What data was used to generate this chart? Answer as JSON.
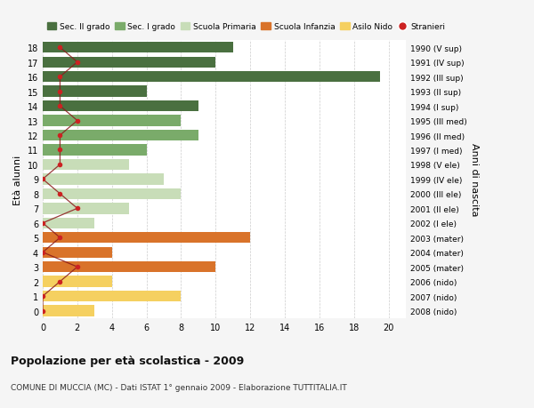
{
  "ages": [
    18,
    17,
    16,
    15,
    14,
    13,
    12,
    11,
    10,
    9,
    8,
    7,
    6,
    5,
    4,
    3,
    2,
    1,
    0
  ],
  "years": [
    "1990 (V sup)",
    "1991 (IV sup)",
    "1992 (III sup)",
    "1993 (II sup)",
    "1994 (I sup)",
    "1995 (III med)",
    "1996 (II med)",
    "1997 (I med)",
    "1998 (V ele)",
    "1999 (IV ele)",
    "2000 (III ele)",
    "2001 (II ele)",
    "2002 (I ele)",
    "2003 (mater)",
    "2004 (mater)",
    "2005 (mater)",
    "2006 (nido)",
    "2007 (nido)",
    "2008 (nido)"
  ],
  "bar_values": [
    11,
    10,
    19.5,
    6,
    9,
    8,
    9,
    6,
    5,
    7,
    8,
    5,
    3,
    12,
    4,
    10,
    4,
    8,
    3
  ],
  "bar_colors": [
    "#4a7040",
    "#4a7040",
    "#4a7040",
    "#4a7040",
    "#4a7040",
    "#7aab6a",
    "#7aab6a",
    "#7aab6a",
    "#c8ddb8",
    "#c8ddb8",
    "#c8ddb8",
    "#c8ddb8",
    "#c8ddb8",
    "#d9732a",
    "#d9732a",
    "#d9732a",
    "#f5d060",
    "#f5d060",
    "#f5d060"
  ],
  "stranieri": [
    1,
    2,
    1,
    1,
    1,
    2,
    1,
    1,
    1,
    0,
    1,
    2,
    0,
    1,
    0,
    2,
    1,
    0,
    0
  ],
  "legend_labels": [
    "Sec. II grado",
    "Sec. I grado",
    "Scuola Primaria",
    "Scuola Infanzia",
    "Asilo Nido",
    "Stranieri"
  ],
  "legend_colors": [
    "#4a7040",
    "#7aab6a",
    "#c8ddb8",
    "#d9732a",
    "#f5d060",
    "#cc2222"
  ],
  "ylabel_left": "Età alunni",
  "ylabel_right": "Anni di nascita",
  "title": "Popolazione per età scolastica - 2009",
  "subtitle": "COMUNE DI MUCCIA (MC) - Dati ISTAT 1° gennaio 2009 - Elaborazione TUTTITALIA.IT",
  "xlim": [
    0,
    21
  ],
  "xticks": [
    0,
    2,
    4,
    6,
    8,
    10,
    12,
    14,
    16,
    18,
    20
  ],
  "bg_color": "#f5f5f5",
  "plot_bg": "#ffffff",
  "grid_color": "#cccccc"
}
